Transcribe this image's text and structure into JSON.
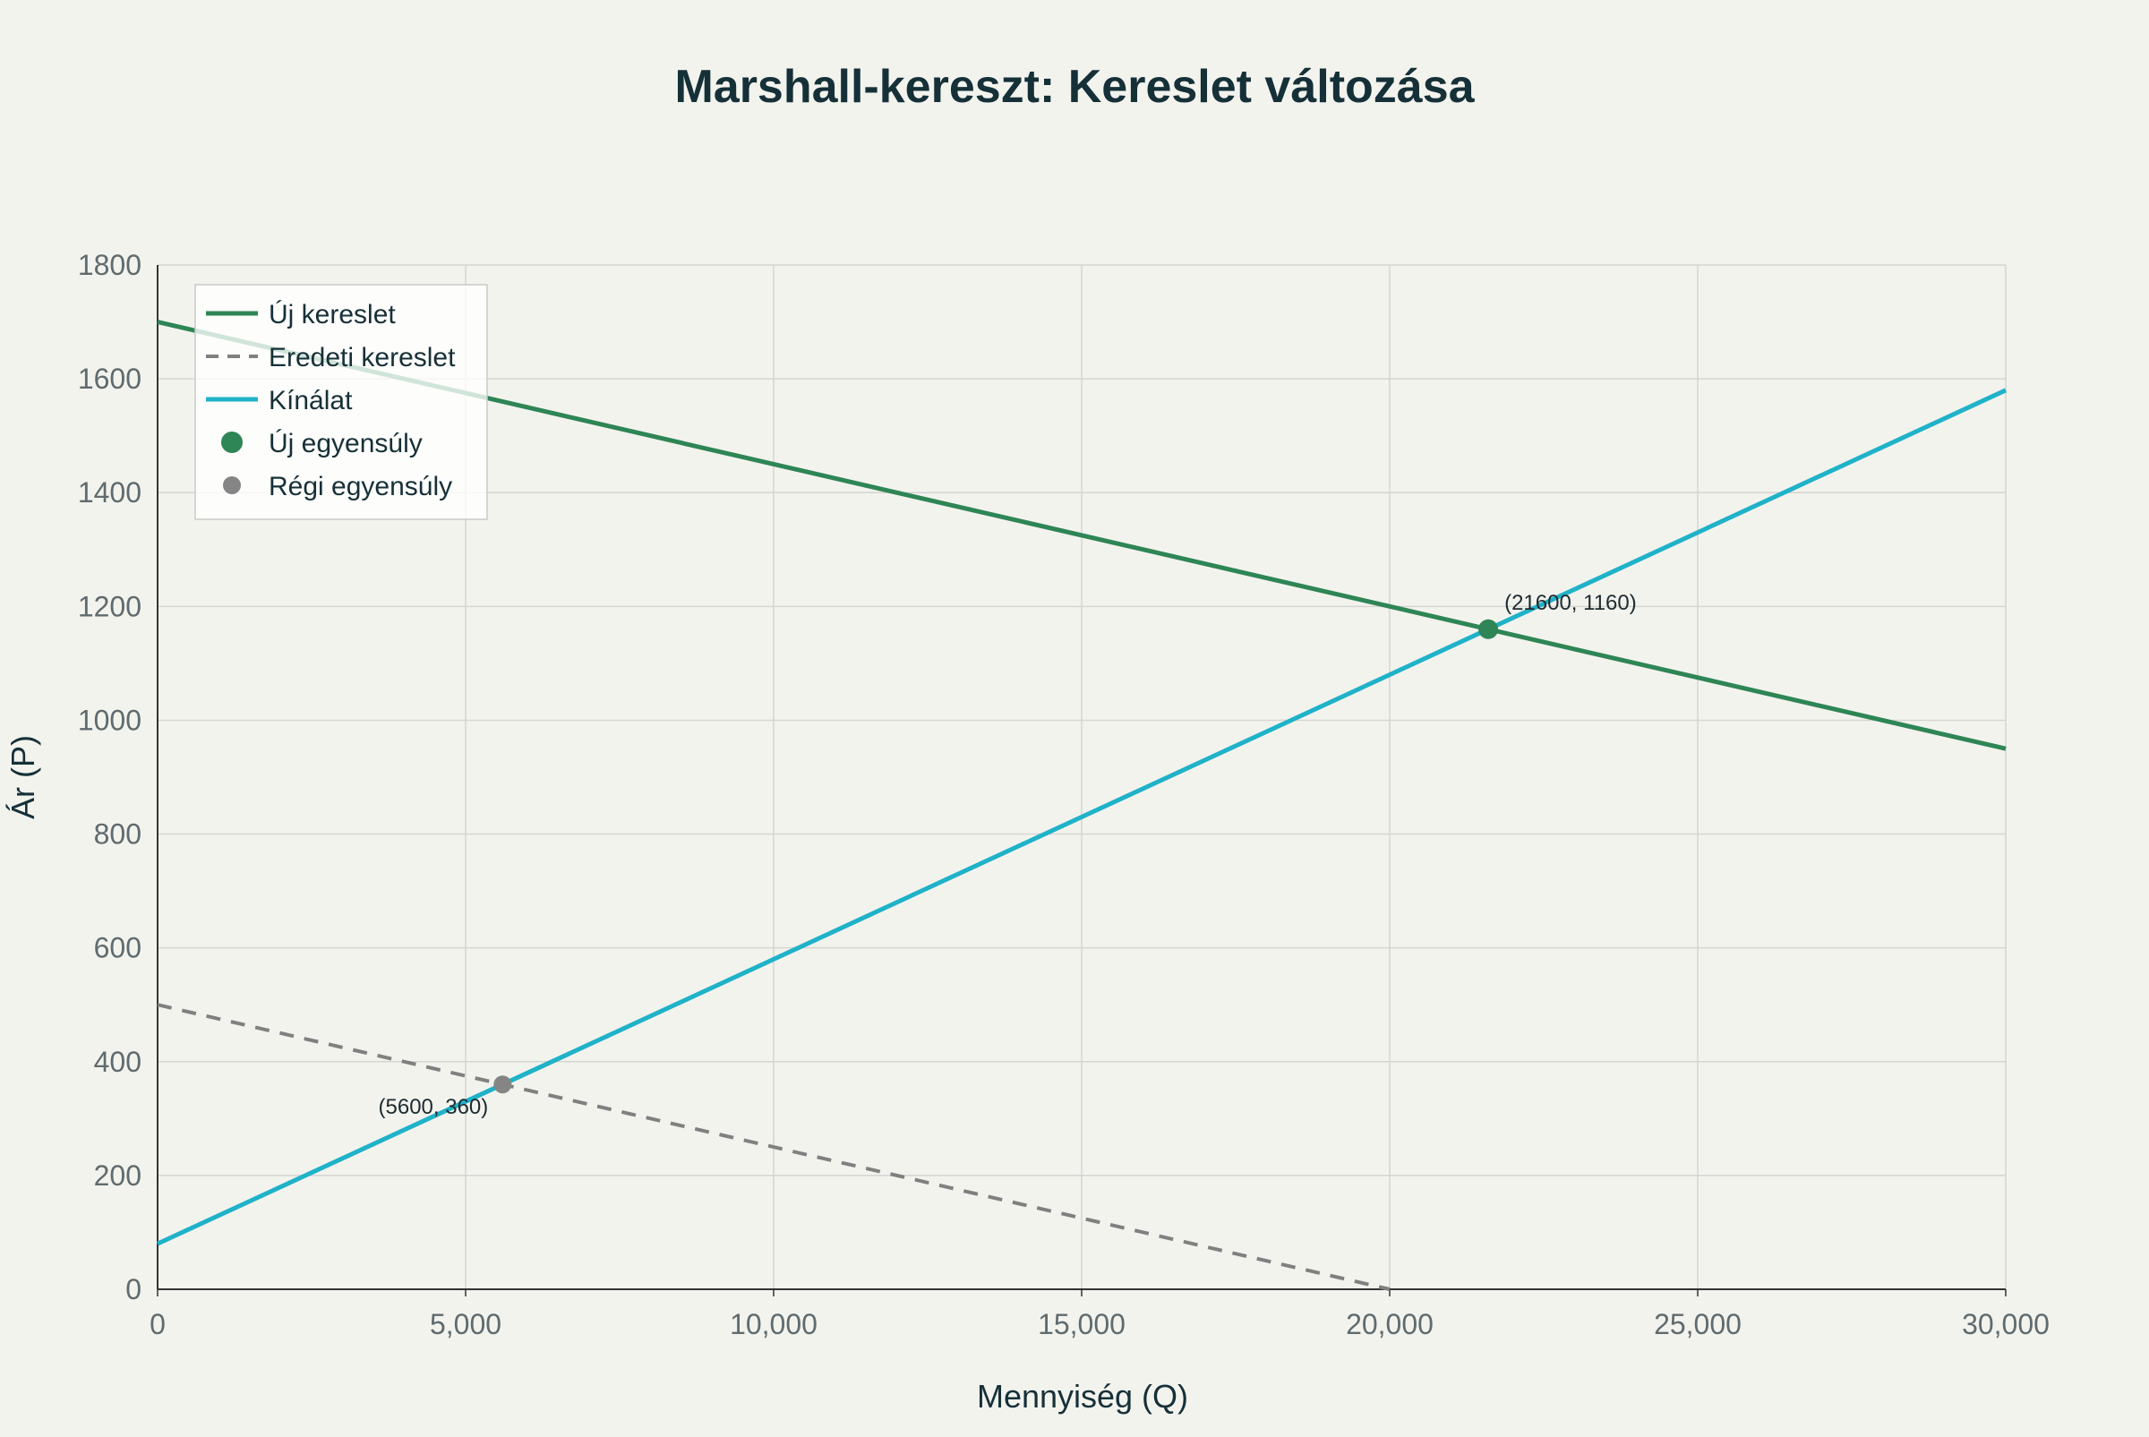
{
  "chart_data": {
    "type": "line",
    "title": "Marshall-kereszt: Kereslet változása",
    "xlabel": "Mennyiség (Q)",
    "ylabel": "Ár (P)",
    "xlim": [
      0,
      30000
    ],
    "ylim": [
      0,
      1800
    ],
    "xticks": [
      0,
      5000,
      10000,
      15000,
      20000,
      25000,
      30000
    ],
    "xtick_labels": [
      "0",
      "5,000",
      "10,000",
      "15,000",
      "20,000",
      "25,000",
      "30,000"
    ],
    "yticks": [
      0,
      200,
      400,
      600,
      800,
      1000,
      1200,
      1400,
      1600,
      1800
    ],
    "ytick_labels": [
      "0",
      "200",
      "400",
      "600",
      "800",
      "1000",
      "1200",
      "1400",
      "1600",
      "1800"
    ],
    "grid": true,
    "legend_position": "top-left",
    "series": [
      {
        "name": "Új kereslet",
        "kind": "line",
        "style": "solid",
        "color": "#2e8555",
        "x": [
          0,
          30000
        ],
        "y": [
          1700,
          950
        ]
      },
      {
        "name": "Eredeti kereslet",
        "kind": "line",
        "style": "dashed",
        "color": "#808080",
        "x": [
          0,
          20000
        ],
        "y": [
          500,
          0
        ]
      },
      {
        "name": "Kínálat",
        "kind": "line",
        "style": "solid",
        "color": "#1fb2c8",
        "x": [
          0,
          30000
        ],
        "y": [
          80,
          1580
        ]
      },
      {
        "name": "Új egyensúly",
        "kind": "point",
        "color": "#2e8555",
        "x": [
          21600
        ],
        "y": [
          1160
        ],
        "label": "(21600, 1160)",
        "label_side": "right"
      },
      {
        "name": "Régi egyensúly",
        "kind": "point",
        "color": "#858585",
        "x": [
          5600
        ],
        "y": [
          360
        ],
        "label": "(5600, 360)",
        "label_side": "left"
      }
    ]
  },
  "colors": {
    "background": "#f3f3ee",
    "title": "#163038",
    "grid": "#d5d5d2",
    "axis": "#333333",
    "tick_text": "#5f6b6e"
  }
}
